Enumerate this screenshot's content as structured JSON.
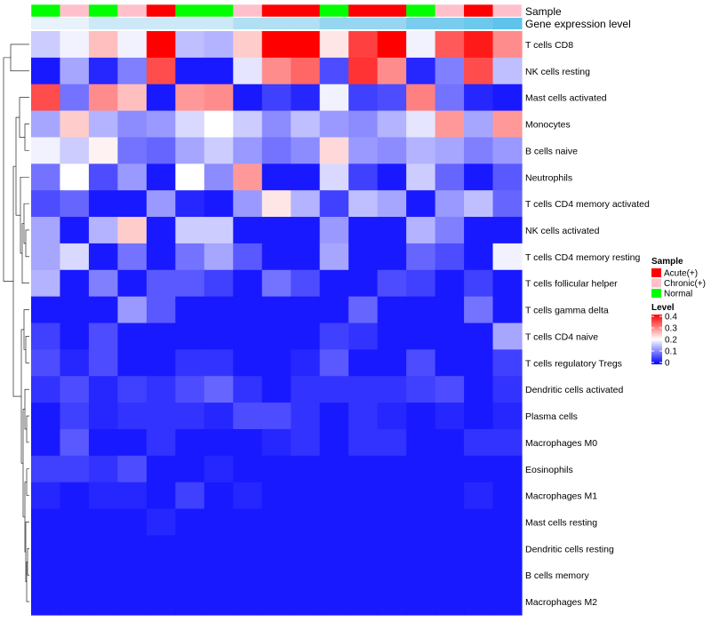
{
  "chart_data": {
    "type": "heatmap",
    "annotation_labels": [
      "Sample",
      "Gene expression level"
    ],
    "rows": [
      "T cells CD8",
      "NK cells resting",
      "Mast cells activated",
      "Monocytes",
      "B cells naive",
      "Neutrophils",
      "T cells CD4 memory activated",
      "NK cells activated",
      "T cells CD4 memory resting",
      "T cells follicular helper",
      "T cells gamma delta",
      "T cells CD4 naive",
      "T cells regulatory  Tregs",
      "Dendritic cells activated",
      "Plasma cells",
      "Macrophages M0",
      "Eosinophils",
      "Macrophages M1",
      "Mast cells resting",
      "Dendritic cells resting",
      "B cells memory",
      "Macrophages M2"
    ],
    "sample_groups": [
      "Normal",
      "Chronic(+)",
      "Normal",
      "Chronic(+)",
      "Acute(+)",
      "Normal",
      "Normal",
      "Chronic(+)",
      "Acute(+)",
      "Acute(+)",
      "Normal",
      "Acute(+)",
      "Acute(+)",
      "Normal",
      "Chronic(+)",
      "Acute(+)",
      "Chronic(+)"
    ],
    "expression_levels": [
      0.5,
      0.5,
      0.6,
      0.6,
      0.6,
      0.6,
      0.6,
      0.7,
      0.7,
      0.7,
      0.8,
      0.8,
      0.8,
      0.9,
      0.9,
      0.95,
      1.0
    ],
    "values": [
      [
        0.16,
        0.19,
        0.25,
        0.19,
        0.4,
        0.15,
        0.14,
        0.24,
        0.4,
        0.4,
        0.22,
        0.35,
        0.4,
        0.19,
        0.33,
        0.38,
        0.29
      ],
      [
        0.02,
        0.13,
        0.03,
        0.1,
        0.34,
        0.02,
        0.02,
        0.18,
        0.29,
        0.32,
        0.06,
        0.36,
        0.29,
        0.03,
        0.1,
        0.34,
        0.15
      ],
      [
        0.34,
        0.09,
        0.29,
        0.25,
        0.02,
        0.28,
        0.29,
        0.02,
        0.05,
        0.03,
        0.19,
        0.05,
        0.06,
        0.3,
        0.09,
        0.03,
        0.02
      ],
      [
        0.13,
        0.24,
        0.14,
        0.11,
        0.12,
        0.17,
        0.2,
        0.16,
        0.11,
        0.15,
        0.12,
        0.11,
        0.14,
        0.18,
        0.28,
        0.13,
        0.28
      ],
      [
        0.19,
        0.16,
        0.21,
        0.09,
        0.08,
        0.13,
        0.16,
        0.12,
        0.09,
        0.11,
        0.23,
        0.12,
        0.11,
        0.14,
        0.13,
        0.1,
        0.12
      ],
      [
        0.09,
        0.2,
        0.06,
        0.12,
        0.02,
        0.2,
        0.11,
        0.28,
        0.02,
        0.02,
        0.17,
        0.05,
        0.02,
        0.16,
        0.08,
        0.02,
        0.07
      ],
      [
        0.06,
        0.08,
        0.02,
        0.02,
        0.12,
        0.03,
        0.02,
        0.12,
        0.22,
        0.14,
        0.05,
        0.15,
        0.13,
        0.02,
        0.12,
        0.15,
        0.08
      ],
      [
        0.13,
        0.02,
        0.14,
        0.24,
        0.02,
        0.16,
        0.16,
        0.02,
        0.02,
        0.02,
        0.12,
        0.02,
        0.02,
        0.14,
        0.1,
        0.02,
        0.02
      ],
      [
        0.13,
        0.17,
        0.02,
        0.09,
        0.02,
        0.09,
        0.13,
        0.07,
        0.02,
        0.02,
        0.13,
        0.02,
        0.02,
        0.08,
        0.06,
        0.02,
        0.19
      ],
      [
        0.14,
        0.02,
        0.1,
        0.02,
        0.07,
        0.07,
        0.05,
        0.02,
        0.09,
        0.06,
        0.02,
        0.02,
        0.06,
        0.05,
        0.02,
        0.05,
        0.02
      ],
      [
        0.02,
        0.02,
        0.02,
        0.12,
        0.07,
        0.02,
        0.02,
        0.02,
        0.02,
        0.02,
        0.02,
        0.08,
        0.02,
        0.02,
        0.02,
        0.09,
        0.02
      ],
      [
        0.05,
        0.02,
        0.06,
        0.02,
        0.02,
        0.02,
        0.02,
        0.02,
        0.02,
        0.02,
        0.05,
        0.04,
        0.02,
        0.02,
        0.02,
        0.02,
        0.13
      ],
      [
        0.06,
        0.03,
        0.06,
        0.02,
        0.02,
        0.04,
        0.04,
        0.02,
        0.02,
        0.03,
        0.07,
        0.02,
        0.02,
        0.06,
        0.02,
        0.02,
        0.05
      ],
      [
        0.04,
        0.06,
        0.03,
        0.05,
        0.04,
        0.06,
        0.08,
        0.04,
        0.02,
        0.04,
        0.04,
        0.04,
        0.04,
        0.05,
        0.06,
        0.02,
        0.04
      ],
      [
        0.02,
        0.05,
        0.03,
        0.04,
        0.04,
        0.04,
        0.03,
        0.06,
        0.06,
        0.04,
        0.02,
        0.04,
        0.03,
        0.02,
        0.03,
        0.02,
        0.03
      ],
      [
        0.02,
        0.07,
        0.02,
        0.02,
        0.04,
        0.02,
        0.02,
        0.02,
        0.03,
        0.04,
        0.02,
        0.04,
        0.04,
        0.02,
        0.02,
        0.04,
        0.04
      ],
      [
        0.05,
        0.05,
        0.04,
        0.06,
        0.02,
        0.02,
        0.03,
        0.02,
        0.02,
        0.02,
        0.02,
        0.02,
        0.02,
        0.02,
        0.02,
        0.02,
        0.02
      ],
      [
        0.03,
        0.02,
        0.03,
        0.03,
        0.02,
        0.05,
        0.02,
        0.03,
        0.02,
        0.02,
        0.02,
        0.02,
        0.02,
        0.02,
        0.02,
        0.03,
        0.02
      ],
      [
        0.02,
        0.02,
        0.02,
        0.02,
        0.03,
        0.02,
        0.02,
        0.02,
        0.02,
        0.02,
        0.02,
        0.02,
        0.02,
        0.02,
        0.02,
        0.02,
        0.02
      ],
      [
        0.02,
        0.02,
        0.02,
        0.02,
        0.02,
        0.02,
        0.02,
        0.02,
        0.02,
        0.02,
        0.02,
        0.02,
        0.02,
        0.02,
        0.02,
        0.02,
        0.02
      ],
      [
        0.02,
        0.02,
        0.02,
        0.02,
        0.02,
        0.02,
        0.02,
        0.02,
        0.02,
        0.02,
        0.02,
        0.02,
        0.02,
        0.02,
        0.02,
        0.02,
        0.02
      ],
      [
        0.02,
        0.02,
        0.02,
        0.02,
        0.02,
        0.02,
        0.02,
        0.02,
        0.02,
        0.02,
        0.02,
        0.02,
        0.02,
        0.02,
        0.02,
        0.02,
        0.02
      ]
    ],
    "color_scale": {
      "min": 0,
      "mid": 0.2,
      "max": 0.4,
      "low_color": "#0000ff",
      "mid_color": "#ffffff",
      "high_color": "#ff0000"
    },
    "legend_sample": {
      "title": "Sample",
      "items": [
        {
          "label": "Acute(+)",
          "color": "#ff0000"
        },
        {
          "label": "Chronic(+)",
          "color": "#ffc0cb"
        },
        {
          "label": "Normal",
          "color": "#00ff00"
        }
      ]
    },
    "legend_level": {
      "title": "Level",
      "ticks": [
        "0.4",
        "0.3",
        "0.2",
        "0.1",
        "0"
      ]
    },
    "row_dendrogram": "hierarchical clustering of rows (left)"
  }
}
